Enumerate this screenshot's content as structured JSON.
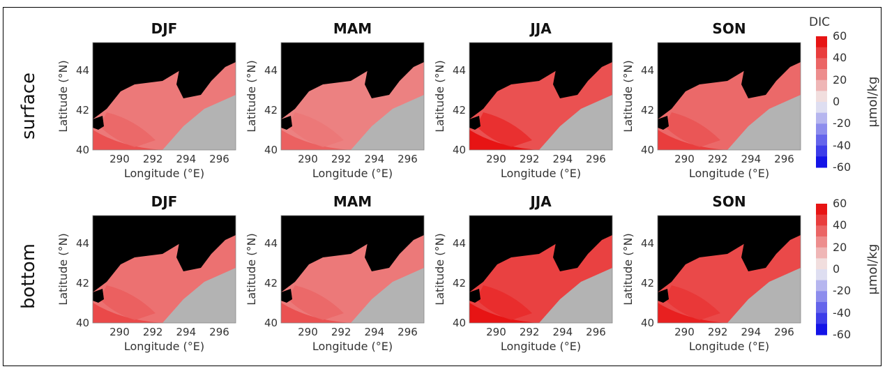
{
  "chart_data": {
    "type": "heatmap",
    "variable": "DIC",
    "units": "μmol/kg",
    "row_labels": [
      "surface",
      "bottom"
    ],
    "column_titles": [
      "DJF",
      "MAM",
      "JJA",
      "SON"
    ],
    "xlabel": "Longitude (°E)",
    "ylabel": "Latitude (°N)",
    "xlim": [
      288.4,
      297.0
    ],
    "ylim": [
      40,
      45.4
    ],
    "x_ticks": [
      "290",
      "292",
      "294",
      "296"
    ],
    "y_ticks": [
      "40",
      "42",
      "44"
    ],
    "clim": [
      -60,
      60
    ],
    "colorbar_ticks": [
      "60",
      "40",
      "20",
      "0",
      "-20",
      "-40",
      "-60"
    ],
    "colorbar_title": "DIC",
    "colormap": {
      "low": "#0000e6",
      "mid": "#f2f2f2",
      "high": "#e60000"
    },
    "land_color": "#000000",
    "no_data_color": "#b3b3b3",
    "panels": [
      {
        "row": "surface",
        "season": "DJF",
        "typical_anomaly": 30,
        "coastal_anomaly": 40
      },
      {
        "row": "surface",
        "season": "MAM",
        "typical_anomaly": 28,
        "coastal_anomaly": 36
      },
      {
        "row": "surface",
        "season": "JJA",
        "typical_anomaly": 40,
        "coastal_anomaly": 55
      },
      {
        "row": "surface",
        "season": "SON",
        "typical_anomaly": 34,
        "coastal_anomaly": 45
      },
      {
        "row": "bottom",
        "season": "DJF",
        "typical_anomaly": 32,
        "coastal_anomaly": 42
      },
      {
        "row": "bottom",
        "season": "MAM",
        "typical_anomaly": 30,
        "coastal_anomaly": 40
      },
      {
        "row": "bottom",
        "season": "JJA",
        "typical_anomaly": 44,
        "coastal_anomaly": 55
      },
      {
        "row": "bottom",
        "season": "SON",
        "typical_anomaly": 42,
        "coastal_anomaly": 52
      }
    ]
  }
}
